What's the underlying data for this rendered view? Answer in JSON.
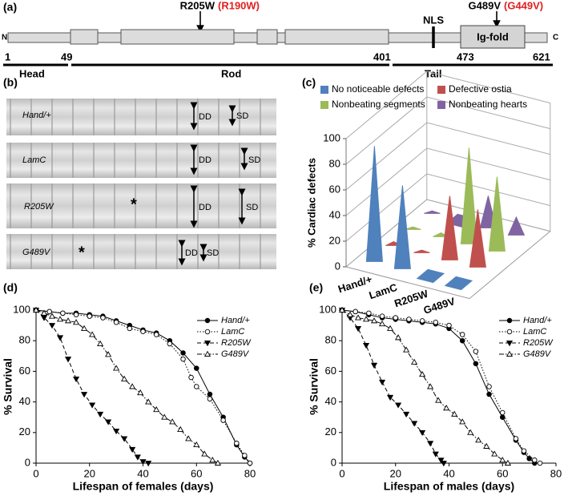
{
  "protein_diagram": {
    "label": "(a)",
    "mutations": [
      {
        "name": "R205W",
        "alias": "(R190W)"
      },
      {
        "name": "G489V",
        "alias": "(G449V)"
      }
    ],
    "nls": "NLS",
    "domain": "Ig-fold",
    "n_terminus": "N",
    "c_terminus": "C",
    "positions": [
      "1",
      "49",
      "401",
      "473",
      "621"
    ],
    "regions": [
      "Head",
      "Rod",
      "Tail"
    ]
  },
  "mmode": {
    "label": "(b)",
    "genotypes": [
      "Hand/+",
      "LamC",
      "R205W",
      "G489V"
    ],
    "diastolic": "DD",
    "systolic": "SD",
    "marker": "*"
  },
  "chart_data": [
    {
      "type": "cone3d",
      "label": "(c)",
      "ylabel": "% Cardiac defects",
      "categories": [
        "Hand/+",
        "LamC",
        "R205W",
        "G489V"
      ],
      "series": [
        {
          "name": "No noticeable defects",
          "color": "#4f81bd",
          "values": [
            90,
            65,
            0,
            0
          ]
        },
        {
          "name": "Defective ostia",
          "color": "#c0504d",
          "values": [
            3,
            2,
            50,
            45
          ]
        },
        {
          "name": "Nonbeating segments",
          "color": "#9bbb59",
          "values": [
            2,
            3,
            75,
            58
          ]
        },
        {
          "name": "Nonbeating hearts",
          "color": "#8064a2",
          "values": [
            2,
            0,
            25,
            14
          ]
        }
      ],
      "ylim": [
        0,
        100
      ],
      "yticks": [
        0,
        20,
        40,
        60,
        80,
        100
      ],
      "grid": true
    },
    {
      "type": "line",
      "label": "(d)",
      "xlabel": "Lifespan of females (days)",
      "ylabel": "% Survival",
      "xlim": [
        0,
        80
      ],
      "ylim": [
        0,
        100
      ],
      "xticks": [
        0,
        20,
        40,
        60,
        80
      ],
      "yticks": [
        0,
        20,
        40,
        60,
        80,
        100
      ],
      "series": [
        {
          "name": "Hand/+",
          "color": "#000000",
          "marker": "filled-circle",
          "line_style": "solid",
          "x": [
            0,
            5,
            10,
            15,
            20,
            25,
            30,
            35,
            40,
            45,
            50,
            55,
            60,
            65,
            70,
            75,
            78,
            80
          ],
          "values": [
            100,
            99,
            98,
            98,
            97,
            96,
            93,
            90,
            87,
            85,
            80,
            72,
            62,
            45,
            30,
            12,
            4,
            0
          ]
        },
        {
          "name": "LamC",
          "color": "#000000",
          "marker": "open-circle",
          "line_style": "dotted",
          "x": [
            0,
            5,
            10,
            15,
            20,
            25,
            30,
            35,
            40,
            45,
            50,
            55,
            58,
            60,
            65,
            70,
            75,
            78,
            80
          ],
          "values": [
            100,
            99,
            98,
            97,
            96,
            95,
            92,
            88,
            86,
            84,
            78,
            68,
            56,
            50,
            42,
            28,
            13,
            5,
            0
          ]
        },
        {
          "name": "R205W",
          "color": "#000000",
          "marker": "filled-triangle-down",
          "line_style": "dashed",
          "x": [
            0,
            3,
            6,
            9,
            12,
            15,
            18,
            21,
            24,
            27,
            30,
            33,
            36,
            38,
            40,
            42
          ],
          "values": [
            100,
            95,
            90,
            82,
            68,
            55,
            45,
            38,
            32,
            27,
            21,
            16,
            9,
            4,
            1,
            0
          ]
        },
        {
          "name": "G489V",
          "color": "#000000",
          "marker": "open-triangle-up",
          "line_style": "dashdot",
          "x": [
            0,
            3,
            6,
            9,
            12,
            15,
            18,
            21,
            24,
            27,
            30,
            33,
            36,
            39,
            42,
            45,
            48,
            51,
            54,
            57,
            60,
            63,
            66,
            68
          ],
          "values": [
            100,
            98,
            96,
            94,
            93,
            92,
            88,
            84,
            78,
            71,
            62,
            55,
            50,
            46,
            40,
            35,
            30,
            27,
            22,
            16,
            12,
            6,
            2,
            0
          ]
        }
      ]
    },
    {
      "type": "line",
      "label": "(e)",
      "xlabel": "Lifespan of males (days)",
      "ylabel": "% Survival",
      "xlim": [
        0,
        80
      ],
      "ylim": [
        0,
        100
      ],
      "xticks": [
        0,
        20,
        40,
        60,
        80
      ],
      "yticks": [
        0,
        20,
        40,
        60,
        80,
        100
      ],
      "series": [
        {
          "name": "Hand/+",
          "color": "#000000",
          "marker": "filled-circle",
          "line_style": "solid",
          "x": [
            0,
            5,
            10,
            15,
            20,
            25,
            30,
            35,
            40,
            45,
            50,
            55,
            60,
            65,
            68,
            70,
            72
          ],
          "values": [
            100,
            99,
            97,
            95,
            94,
            93,
            92,
            91,
            88,
            80,
            65,
            45,
            30,
            15,
            7,
            3,
            0
          ]
        },
        {
          "name": "LamC",
          "color": "#000000",
          "marker": "open-circle",
          "line_style": "dotted",
          "x": [
            0,
            5,
            10,
            15,
            20,
            25,
            30,
            35,
            40,
            45,
            50,
            55,
            60,
            65,
            68,
            72,
            74
          ],
          "values": [
            100,
            99,
            98,
            96,
            95,
            94,
            93,
            92,
            90,
            84,
            73,
            50,
            33,
            16,
            8,
            2,
            0
          ]
        },
        {
          "name": "R205W",
          "color": "#000000",
          "marker": "filled-triangle-down",
          "line_style": "dashed",
          "x": [
            0,
            3,
            6,
            9,
            12,
            15,
            18,
            21,
            24,
            27,
            30,
            33,
            35,
            37,
            38
          ],
          "values": [
            100,
            95,
            88,
            77,
            64,
            53,
            43,
            38,
            32,
            26,
            20,
            13,
            6,
            2,
            0
          ]
        },
        {
          "name": "G489V",
          "color": "#000000",
          "marker": "open-triangle-up",
          "line_style": "dashdot",
          "x": [
            0,
            3,
            6,
            9,
            12,
            15,
            18,
            21,
            24,
            27,
            30,
            33,
            36,
            39,
            42,
            45,
            48,
            51,
            54,
            57,
            60,
            62
          ],
          "values": [
            100,
            97,
            95,
            94,
            93,
            91,
            88,
            82,
            74,
            66,
            58,
            50,
            41,
            36,
            32,
            27,
            20,
            15,
            11,
            6,
            2,
            0
          ]
        }
      ]
    }
  ]
}
